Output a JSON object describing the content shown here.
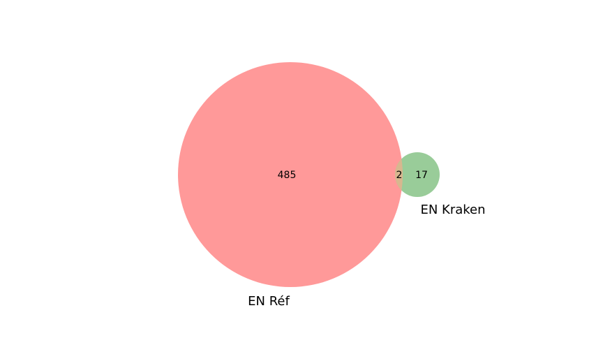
{
  "colors": {
    "set_a": "#ff9999",
    "set_b": "#99cc99",
    "overlap": "#d7b78f"
  },
  "venn": {
    "sets": [
      {
        "name": "EN Réf",
        "only_count": "485"
      },
      {
        "name": "EN Kraken",
        "only_count": "17"
      }
    ],
    "intersection_count": "2"
  }
}
